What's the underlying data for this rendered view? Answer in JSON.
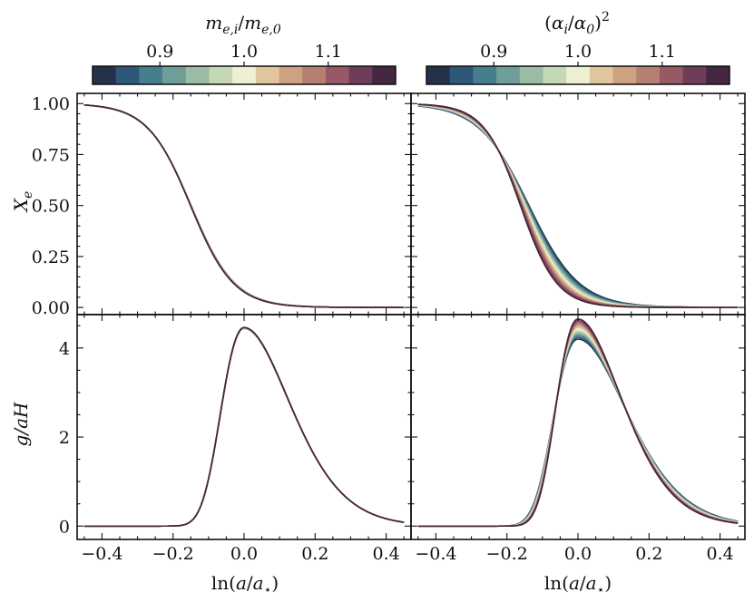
{
  "figure": {
    "colormap": [
      "#23324a",
      "#2e5877",
      "#477e8e",
      "#6f9d97",
      "#9abba6",
      "#c4d8b5",
      "#efefd4",
      "#e1c59e",
      "#cfa183",
      "#b57f71",
      "#975966",
      "#703d58",
      "#43263f"
    ]
  },
  "colorbars": [
    {
      "title": "m_{e,i}/m_{e,0}",
      "title_parts": {
        "base": "m",
        "sub1": "e,i",
        "slash": "/",
        "base2": "m",
        "sub2": "e,0"
      },
      "ticks": [
        {
          "value": 0.9,
          "label": "0.9"
        },
        {
          "value": 1.0,
          "label": "1.0"
        },
        {
          "value": 1.1,
          "label": "1.1"
        }
      ],
      "range": [
        0.82,
        1.18
      ]
    },
    {
      "title": "(α_i/α_0)^2",
      "title_parts": {
        "open": "(",
        "base": "α",
        "sub1": "i",
        "slash": "/",
        "base2": "α",
        "sub2": "0",
        "close": ")",
        "sup": "2"
      },
      "ticks": [
        {
          "value": 0.9,
          "label": "0.9"
        },
        {
          "value": 1.0,
          "label": "1.0"
        },
        {
          "value": 1.1,
          "label": "1.1"
        }
      ],
      "range": [
        0.82,
        1.18
      ]
    }
  ],
  "chart_data": [
    {
      "type": "line",
      "panel": "top-left",
      "xlabel": "",
      "ylabel": "X_e",
      "xlim": [
        -0.47,
        0.47
      ],
      "ylim": [
        -0.035,
        1.05
      ],
      "yticks": [
        {
          "value": 0.0,
          "label": "0.00"
        },
        {
          "value": 0.25,
          "label": "0.25"
        },
        {
          "value": 0.5,
          "label": "0.50"
        },
        {
          "value": 0.75,
          "label": "0.75"
        },
        {
          "value": 1.0,
          "label": "1.00"
        }
      ],
      "xticks": [],
      "n_series": 13,
      "spread": 0.003,
      "x_range": [
        -0.45,
        0.45
      ],
      "model": "logistic",
      "x0": -0.15,
      "width": 0.061
    },
    {
      "type": "line",
      "panel": "top-right",
      "xlabel": "",
      "ylabel": "",
      "xlim": [
        -0.47,
        0.47
      ],
      "ylim": [
        -0.035,
        1.05
      ],
      "yticks": [],
      "xticks": [],
      "n_series": 13,
      "spread": 0.05,
      "x_range": [
        -0.45,
        0.45
      ],
      "model": "logistic",
      "x0": -0.15,
      "width": 0.061
    },
    {
      "type": "line",
      "panel": "bottom-left",
      "xlabel": "ln(a/a_⋆)",
      "ylabel": "g/aH",
      "xlim": [
        -0.47,
        0.47
      ],
      "ylim": [
        -0.3,
        4.75
      ],
      "yticks": [
        {
          "value": 0,
          "label": "0"
        },
        {
          "value": 2,
          "label": "2"
        },
        {
          "value": 4,
          "label": "4"
        }
      ],
      "xticks": [
        {
          "value": -0.4,
          "label": "−0.4"
        },
        {
          "value": -0.2,
          "label": "−0.2"
        },
        {
          "value": 0.0,
          "label": "0.0"
        },
        {
          "value": 0.2,
          "label": "0.2"
        },
        {
          "value": 0.4,
          "label": "0.4"
        }
      ],
      "n_series": 13,
      "spread": 0.002,
      "peak": 4.45,
      "x_range": [
        -0.45,
        0.45
      ],
      "model": "visibility"
    },
    {
      "type": "line",
      "panel": "bottom-right",
      "xlabel": "ln(a/a_⋆)",
      "ylabel": "",
      "xlim": [
        -0.47,
        0.47
      ],
      "ylim": [
        -0.3,
        4.75
      ],
      "yticks": [],
      "xticks": [
        {
          "value": -0.4,
          "label": "−0.4"
        },
        {
          "value": -0.2,
          "label": "−0.2"
        },
        {
          "value": 0.0,
          "label": "0.0"
        },
        {
          "value": 0.2,
          "label": "0.2"
        },
        {
          "value": 0.4,
          "label": "0.4"
        }
      ],
      "n_series": 13,
      "spread": 0.05,
      "peak_min": 4.2,
      "peak_max": 4.65,
      "x_range": [
        -0.45,
        0.45
      ],
      "model": "visibility"
    }
  ]
}
